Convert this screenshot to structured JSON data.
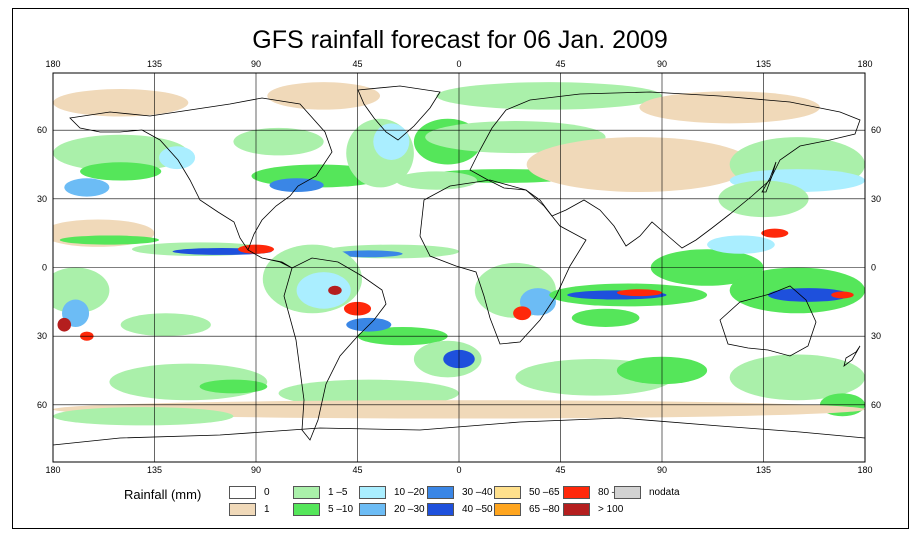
{
  "chart_data": {
    "type": "heatmap",
    "title": "GFS rainfall forecast for 06 Jan. 2009",
    "x_ticks": [
      "180",
      "135",
      "90",
      "45",
      "0",
      "45",
      "90",
      "135",
      "180"
    ],
    "y_ticks": [
      "60",
      "30",
      "0",
      "30",
      "60"
    ],
    "xlim": [
      -180,
      180
    ],
    "ylim": [
      -85,
      85
    ],
    "legend_title": "Rainfall (mm)",
    "legend": [
      {
        "label": "0",
        "color": "#ffffff"
      },
      {
        "label": "1",
        "color": "#f0d9b9"
      },
      {
        "label": "1 –5",
        "color": "#aaf0aa"
      },
      {
        "label": "5 –10",
        "color": "#55e65a"
      },
      {
        "label": "10 –20",
        "color": "#aaeeff"
      },
      {
        "label": "20 –30",
        "color": "#6cbcf5"
      },
      {
        "label": "30 –40",
        "color": "#3a86e6"
      },
      {
        "label": "40 –50",
        "color": "#1e50dc"
      },
      {
        "label": "50 –65",
        "color": "#ffe08c"
      },
      {
        "label": "65 –80",
        "color": "#ffa51e"
      },
      {
        "label": "80 –100",
        "color": "#ff280a"
      },
      {
        "label": "> 100",
        "color": "#b41e1e"
      },
      {
        "label": "nodata",
        "color": "#d2d2d2"
      }
    ],
    "rain_regions": [
      {
        "lon": -150,
        "lat": 72,
        "rx": 30,
        "ry": 6,
        "level": 1
      },
      {
        "lon": -60,
        "lat": 75,
        "rx": 25,
        "ry": 6,
        "level": 1
      },
      {
        "lon": 40,
        "lat": 75,
        "rx": 50,
        "ry": 6,
        "level": 2
      },
      {
        "lon": 120,
        "lat": 70,
        "rx": 40,
        "ry": 7,
        "level": 1
      },
      {
        "lon": -150,
        "lat": 50,
        "rx": 30,
        "ry": 8,
        "level": 2
      },
      {
        "lon": -150,
        "lat": 42,
        "rx": 18,
        "ry": 4,
        "level": 3
      },
      {
        "lon": -165,
        "lat": 35,
        "rx": 10,
        "ry": 4,
        "level": 5
      },
      {
        "lon": -125,
        "lat": 48,
        "rx": 8,
        "ry": 5,
        "level": 4
      },
      {
        "lon": -80,
        "lat": 55,
        "rx": 20,
        "ry": 6,
        "level": 2
      },
      {
        "lon": -62,
        "lat": 40,
        "rx": 30,
        "ry": 5,
        "level": 3
      },
      {
        "lon": -72,
        "lat": 36,
        "rx": 12,
        "ry": 3,
        "level": 6
      },
      {
        "lon": -35,
        "lat": 50,
        "rx": 15,
        "ry": 15,
        "level": 2
      },
      {
        "lon": -30,
        "lat": 55,
        "rx": 8,
        "ry": 8,
        "level": 4
      },
      {
        "lon": -5,
        "lat": 55,
        "rx": 15,
        "ry": 10,
        "level": 3
      },
      {
        "lon": 25,
        "lat": 57,
        "rx": 40,
        "ry": 7,
        "level": 2
      },
      {
        "lon": 20,
        "lat": 40,
        "rx": 35,
        "ry": 3,
        "level": 3
      },
      {
        "lon": -10,
        "lat": 38,
        "rx": 18,
        "ry": 4,
        "level": 2
      },
      {
        "lon": 80,
        "lat": 45,
        "rx": 50,
        "ry": 12,
        "level": 1
      },
      {
        "lon": 150,
        "lat": 45,
        "rx": 30,
        "ry": 12,
        "level": 2
      },
      {
        "lon": 150,
        "lat": 38,
        "rx": 30,
        "ry": 5,
        "level": 4
      },
      {
        "lon": 135,
        "lat": 30,
        "rx": 20,
        "ry": 8,
        "level": 2
      },
      {
        "lon": -160,
        "lat": 15,
        "rx": 25,
        "ry": 6,
        "level": 1
      },
      {
        "lon": -155,
        "lat": 12,
        "rx": 22,
        "ry": 2,
        "level": 3
      },
      {
        "lon": -115,
        "lat": 8,
        "rx": 30,
        "ry": 3,
        "level": 2
      },
      {
        "lon": -105,
        "lat": 7,
        "rx": 22,
        "ry": 1.5,
        "level": 7
      },
      {
        "lon": -90,
        "lat": 8,
        "rx": 8,
        "ry": 2,
        "level": 10
      },
      {
        "lon": -30,
        "lat": 7,
        "rx": 30,
        "ry": 3,
        "level": 2
      },
      {
        "lon": -40,
        "lat": 6,
        "rx": 15,
        "ry": 1.5,
        "level": 6
      },
      {
        "lon": -65,
        "lat": -5,
        "rx": 22,
        "ry": 15,
        "level": 2
      },
      {
        "lon": -60,
        "lat": -10,
        "rx": 12,
        "ry": 8,
        "level": 4
      },
      {
        "lon": -55,
        "lat": -10,
        "rx": 3,
        "ry": 2,
        "level": 11
      },
      {
        "lon": -45,
        "lat": -18,
        "rx": 6,
        "ry": 3,
        "level": 10
      },
      {
        "lon": -25,
        "lat": -30,
        "rx": 20,
        "ry": 4,
        "level": 3
      },
      {
        "lon": -40,
        "lat": -25,
        "rx": 10,
        "ry": 3,
        "level": 6
      },
      {
        "lon": -5,
        "lat": -40,
        "rx": 15,
        "ry": 8,
        "level": 2
      },
      {
        "lon": 0,
        "lat": -40,
        "rx": 7,
        "ry": 4,
        "level": 7
      },
      {
        "lon": 25,
        "lat": -10,
        "rx": 18,
        "ry": 12,
        "level": 2
      },
      {
        "lon": 35,
        "lat": -15,
        "rx": 8,
        "ry": 6,
        "level": 5
      },
      {
        "lon": 28,
        "lat": -20,
        "rx": 4,
        "ry": 3,
        "level": 10
      },
      {
        "lon": 75,
        "lat": -12,
        "rx": 35,
        "ry": 5,
        "level": 3
      },
      {
        "lon": 70,
        "lat": -12,
        "rx": 22,
        "ry": 2,
        "level": 7
      },
      {
        "lon": 80,
        "lat": -11,
        "rx": 10,
        "ry": 1.5,
        "level": 10
      },
      {
        "lon": 65,
        "lat": -22,
        "rx": 15,
        "ry": 4,
        "level": 3
      },
      {
        "lon": 110,
        "lat": 0,
        "rx": 25,
        "ry": 8,
        "level": 3
      },
      {
        "lon": 125,
        "lat": 10,
        "rx": 15,
        "ry": 4,
        "level": 4
      },
      {
        "lon": 140,
        "lat": 15,
        "rx": 6,
        "ry": 2,
        "level": 10
      },
      {
        "lon": 150,
        "lat": -10,
        "rx": 30,
        "ry": 10,
        "level": 3
      },
      {
        "lon": 155,
        "lat": -12,
        "rx": 18,
        "ry": 3,
        "level": 7
      },
      {
        "lon": 170,
        "lat": -12,
        "rx": 5,
        "ry": 1.5,
        "level": 10
      },
      {
        "lon": -170,
        "lat": -10,
        "rx": 15,
        "ry": 10,
        "level": 2
      },
      {
        "lon": -170,
        "lat": -20,
        "rx": 6,
        "ry": 6,
        "level": 5
      },
      {
        "lon": -175,
        "lat": -25,
        "rx": 3,
        "ry": 3,
        "level": 11
      },
      {
        "lon": -165,
        "lat": -30,
        "rx": 3,
        "ry": 2,
        "level": 10
      },
      {
        "lon": -130,
        "lat": -25,
        "rx": 20,
        "ry": 5,
        "level": 2
      },
      {
        "lon": -120,
        "lat": -50,
        "rx": 35,
        "ry": 8,
        "level": 2
      },
      {
        "lon": -100,
        "lat": -52,
        "rx": 15,
        "ry": 3,
        "level": 3
      },
      {
        "lon": -40,
        "lat": -55,
        "rx": 40,
        "ry": 6,
        "level": 2
      },
      {
        "lon": 60,
        "lat": -48,
        "rx": 35,
        "ry": 8,
        "level": 2
      },
      {
        "lon": 90,
        "lat": -45,
        "rx": 20,
        "ry": 6,
        "level": 3
      },
      {
        "lon": 150,
        "lat": -48,
        "rx": 30,
        "ry": 10,
        "level": 2
      },
      {
        "lon": 170,
        "lat": -60,
        "rx": 10,
        "ry": 5,
        "level": 3
      },
      {
        "lon": 0,
        "lat": -62,
        "rx": 180,
        "ry": 4,
        "level": 1
      },
      {
        "lon": -140,
        "lat": -65,
        "rx": 40,
        "ry": 4,
        "level": 2
      }
    ]
  }
}
